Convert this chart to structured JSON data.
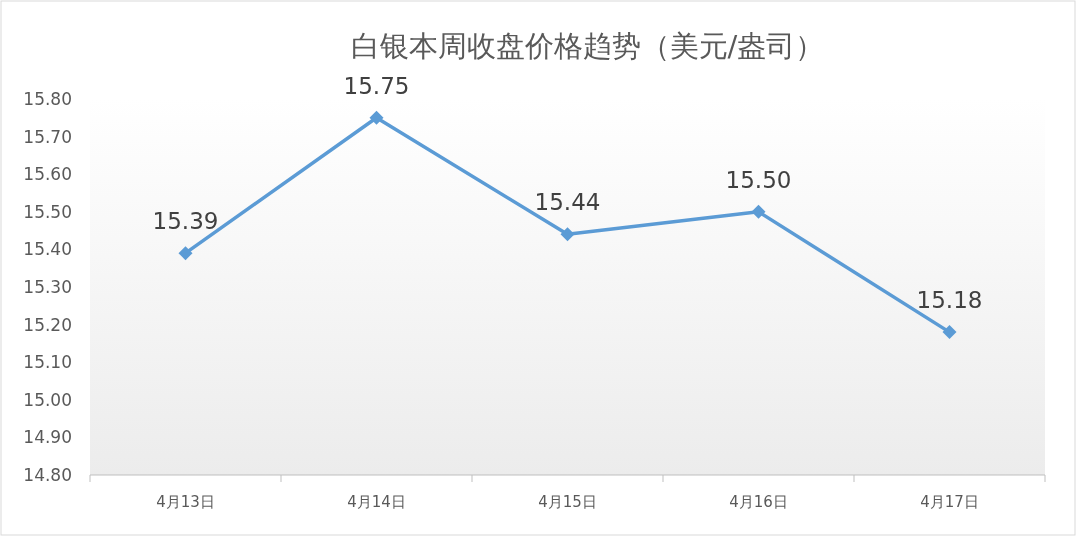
{
  "chart_data": {
    "type": "line",
    "title": "白银本周收盘价格趋势（美元/盎司）",
    "categories": [
      "4月13日",
      "4月14日",
      "4月15日",
      "4月16日",
      "4月17日"
    ],
    "series": [
      {
        "color": "#5b9bd5",
        "values": [
          15.39,
          15.75,
          15.44,
          15.5,
          15.18
        ],
        "value_labels": [
          "15.39",
          "15.75",
          "15.44",
          "15.50",
          "15.18"
        ]
      }
    ],
    "ylim": [
      14.8,
      15.8
    ],
    "yticks": [
      {
        "value": 14.8,
        "label": "14.80"
      },
      {
        "value": 14.9,
        "label": "14.90"
      },
      {
        "value": 15.0,
        "label": "15.00"
      },
      {
        "value": 15.1,
        "label": "15.10"
      },
      {
        "value": 15.2,
        "label": "15.20"
      },
      {
        "value": 15.3,
        "label": "15.30"
      },
      {
        "value": 15.4,
        "label": "15.40"
      },
      {
        "value": 15.5,
        "label": "15.50"
      },
      {
        "value": 15.6,
        "label": "15.60"
      },
      {
        "value": 15.7,
        "label": "15.70"
      },
      {
        "value": 15.8,
        "label": "15.80"
      }
    ],
    "marker": "diamond",
    "line_style": "solid"
  }
}
